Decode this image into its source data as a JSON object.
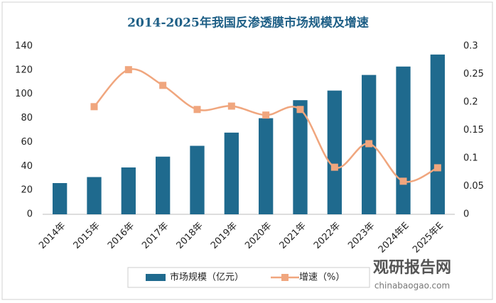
{
  "chart_data": {
    "type": "bar-line",
    "title": "2014-2025年我国反渗透膜市场规模及增速",
    "categories": [
      "2014年",
      "2015年",
      "2016年",
      "2017年",
      "2018年",
      "2019年",
      "2020年",
      "2021年",
      "2022年",
      "2023年",
      "2024年E",
      "2025年E"
    ],
    "series": [
      {
        "name": "市场规模（亿元）",
        "type": "bar",
        "color": "#1f6a8e",
        "values": [
          26,
          31,
          39,
          48,
          57,
          68,
          80,
          95,
          103,
          116,
          123,
          133
        ]
      },
      {
        "name": "增速（%）",
        "type": "line",
        "axis": "y2",
        "color": "#f0a67e",
        "values": [
          null,
          0.192,
          0.258,
          0.23,
          0.187,
          0.193,
          0.177,
          0.187,
          0.084,
          0.126,
          0.059,
          0.083
        ]
      }
    ],
    "ylim": [
      0,
      140
    ],
    "yticks": [
      0,
      20,
      40,
      60,
      80,
      100,
      120,
      140
    ],
    "y2lim": [
      0,
      0.3
    ],
    "y2ticks": [
      0,
      0.05,
      0.1,
      0.15,
      0.2,
      0.25,
      0.3
    ],
    "grid": false,
    "legend": "bottom",
    "watermark": "观研报告网",
    "watermark_url": "chinabaogao.com"
  }
}
